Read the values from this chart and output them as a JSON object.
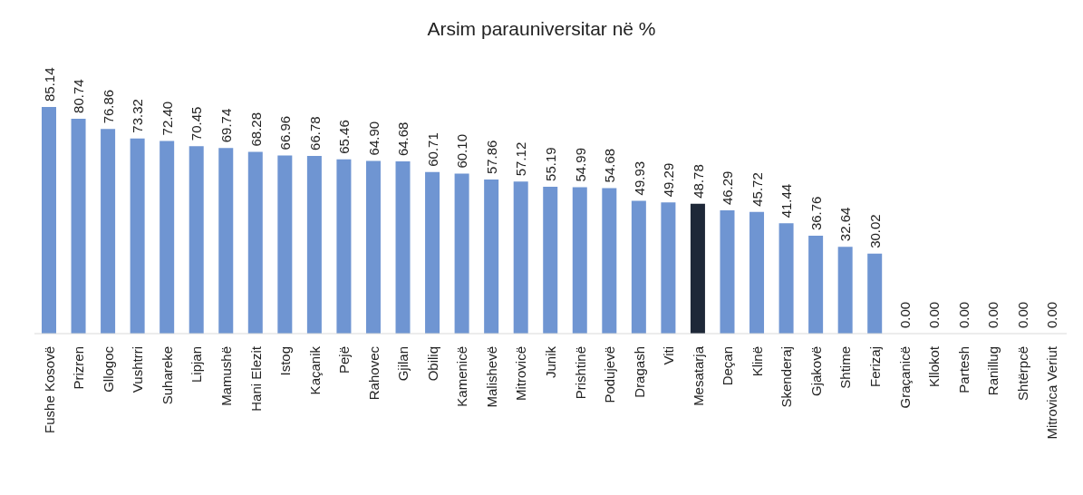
{
  "chart_data": {
    "type": "bar",
    "title": "Arsim parauniversitar në %",
    "categories": [
      "Fushe Kosovë",
      "Prizren",
      "Gllogoc",
      "Vushtrri",
      "Suhareke",
      "Lipjan",
      "Mamushë",
      "Hani Elezit",
      "Istog",
      "Kaçanik",
      "Pejë",
      "Rahovec",
      "Gjilan",
      "Obiliq",
      "Kamenicë",
      "Malishevë",
      "Mitrovicë",
      "Junik",
      "Prishtinë",
      "Podujevë",
      "Dragash",
      "Viti",
      "Mesatarja",
      "Deçan",
      "Klinë",
      "Skenderaj",
      "Gjakovë",
      "Shtime",
      "Ferizaj",
      "Graçanicë",
      "Kllokot",
      "Partesh",
      "Ranillug",
      "Shtërpcë",
      "Mitrovica Veriut"
    ],
    "values": [
      85.14,
      80.74,
      76.86,
      73.32,
      72.4,
      70.45,
      69.74,
      68.28,
      66.96,
      66.78,
      65.46,
      64.9,
      64.68,
      60.71,
      60.1,
      57.86,
      57.12,
      55.19,
      54.99,
      54.68,
      49.93,
      49.29,
      48.78,
      46.29,
      45.72,
      41.44,
      36.76,
      32.64,
      30.02,
      0,
      0,
      0,
      0,
      0,
      0
    ],
    "value_labels": [
      "85.14",
      "80.74",
      "76.86",
      "73.32",
      "72.40",
      "70.45",
      "69.74",
      "68.28",
      "66.96",
      "66.78",
      "65.46",
      "64.90",
      "64.68",
      "60.71",
      "60.10",
      "57.86",
      "57.12",
      "55.19",
      "54.99",
      "54.68",
      "49.93",
      "49.29",
      "48.78",
      "46.29",
      "45.72",
      "41.44",
      "36.76",
      "32.64",
      "30.02",
      "0.00",
      "0.00",
      "0.00",
      "0.00",
      "0.00",
      "0.00"
    ],
    "colors": [
      "#6f95d2",
      "#6f95d2",
      "#6f95d2",
      "#6f95d2",
      "#6f95d2",
      "#6f95d2",
      "#6f95d2",
      "#6f95d2",
      "#6f95d2",
      "#6f95d2",
      "#6f95d2",
      "#6f95d2",
      "#6f95d2",
      "#6f95d2",
      "#6f95d2",
      "#6f95d2",
      "#6f95d2",
      "#6f95d2",
      "#6f95d2",
      "#6f95d2",
      "#6f95d2",
      "#6f95d2",
      "#1e2838",
      "#6f95d2",
      "#6f95d2",
      "#6f95d2",
      "#6f95d2",
      "#6f95d2",
      "#6f95d2",
      "#6f95d2",
      "#6f95d2",
      "#6f95d2",
      "#6f95d2",
      "#6f95d2",
      "#6f95d2"
    ]
  }
}
